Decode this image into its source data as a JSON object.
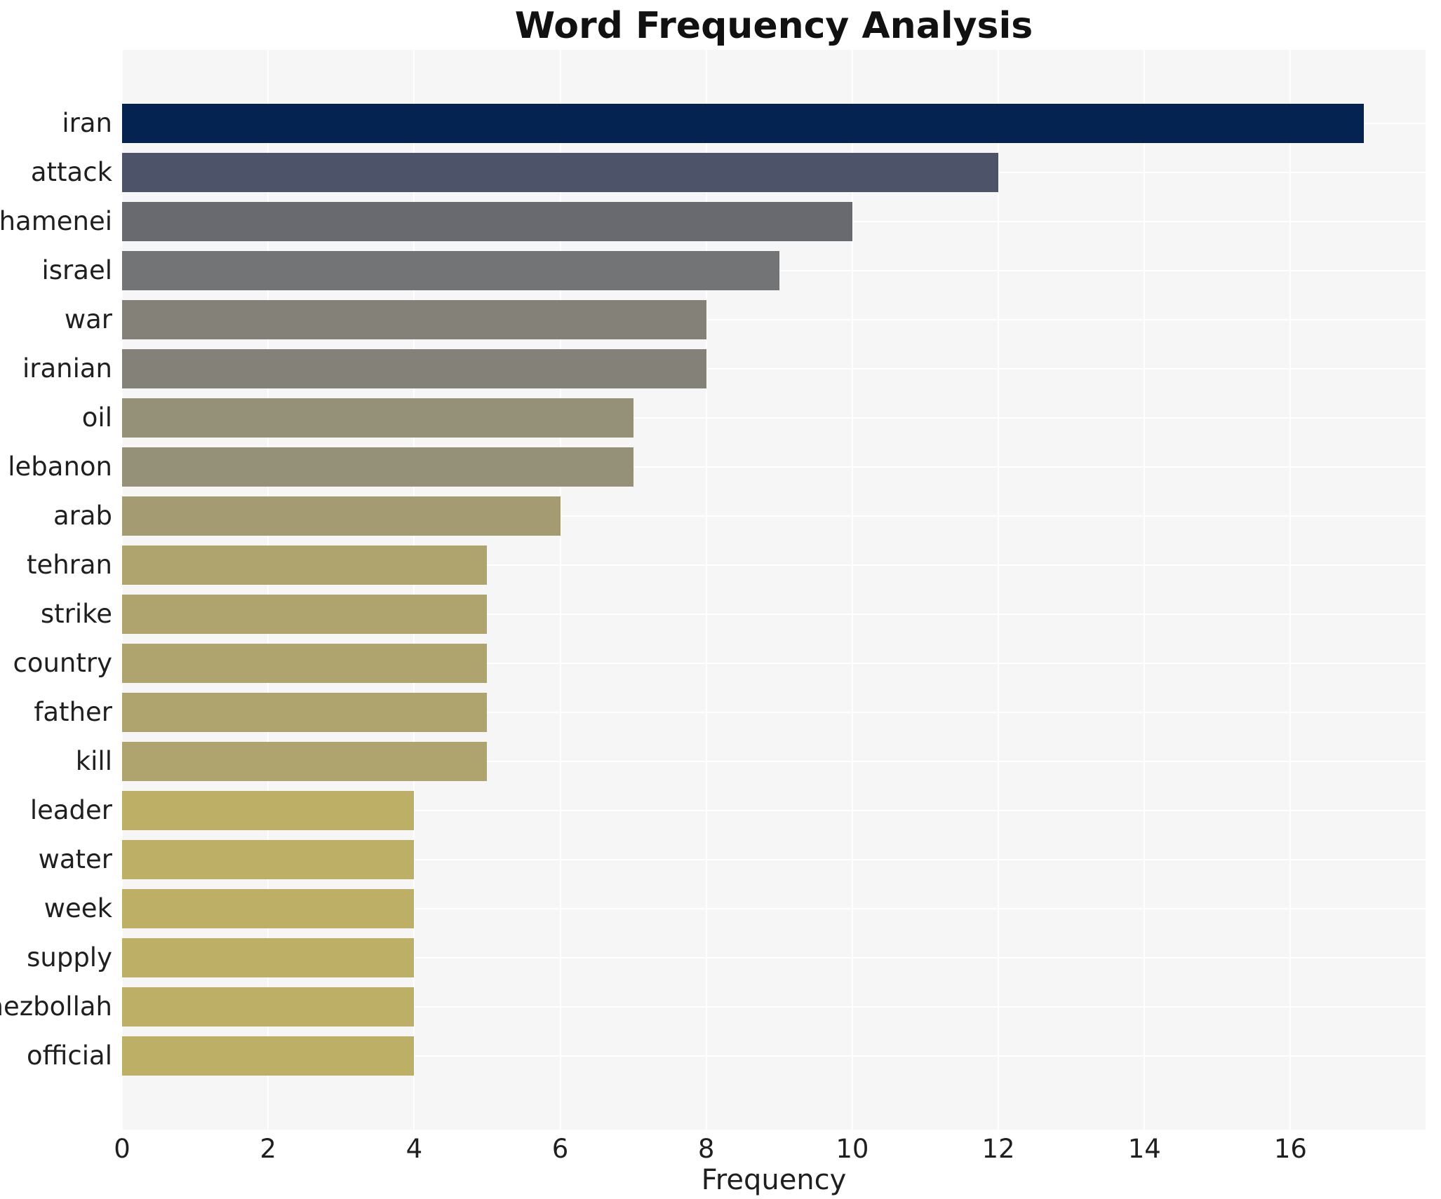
{
  "chart": {
    "title": "Word Frequency Analysis",
    "xlabel": "Frequency"
  },
  "chart_data": {
    "type": "bar",
    "orientation": "horizontal",
    "title": "Word Frequency Analysis",
    "xlabel": "Frequency",
    "ylabel": "",
    "categories": [
      "iran",
      "attack",
      "khamenei",
      "israel",
      "war",
      "iranian",
      "oil",
      "lebanon",
      "arab",
      "tehran",
      "strike",
      "country",
      "father",
      "kill",
      "leader",
      "water",
      "week",
      "supply",
      "hezbollah",
      "official"
    ],
    "values": [
      17,
      12,
      10,
      9,
      8,
      8,
      7,
      7,
      6,
      5,
      5,
      5,
      5,
      5,
      4,
      4,
      4,
      4,
      4,
      4
    ],
    "bar_colors": [
      "#052350",
      "#4d5469",
      "#686a6f",
      "#737476",
      "#848278",
      "#848278",
      "#959078",
      "#959078",
      "#a49b73",
      "#afa46d",
      "#afa46d",
      "#afa46d",
      "#afa46d",
      "#afa46d",
      "#bdaf66",
      "#bdaf66",
      "#bdaf66",
      "#bdaf66",
      "#bdaf66",
      "#bdaf66"
    ],
    "xlim": [
      0,
      17.85
    ],
    "xticks": [
      0,
      2,
      4,
      6,
      8,
      10,
      12,
      14,
      16
    ],
    "grid": true,
    "legend": "none",
    "plot_bg_color": "#f6f6f7",
    "grid_color": "#ffffff",
    "figure_bg_color": "#ffffff",
    "text_color": "#1f1f1f"
  }
}
